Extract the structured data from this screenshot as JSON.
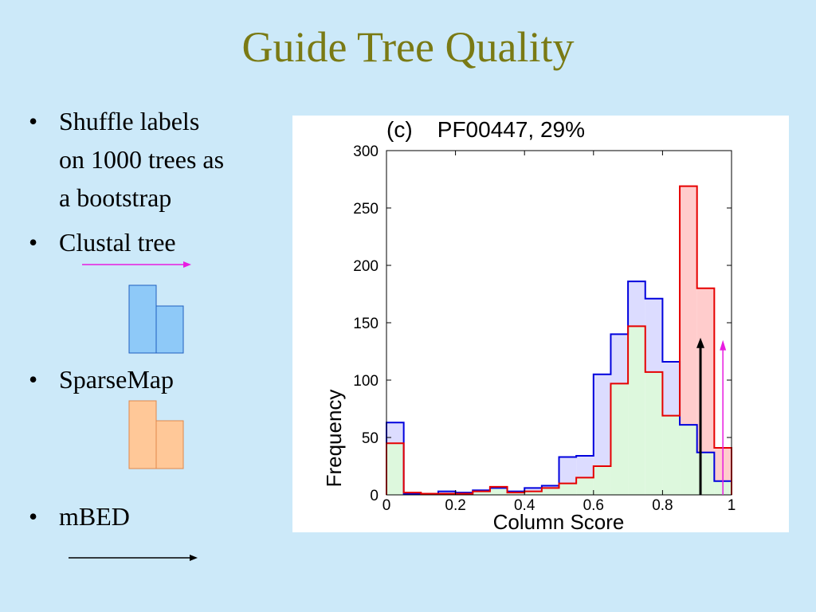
{
  "slide": {
    "title": "Guide Tree Quality",
    "bullets": [
      {
        "lines": [
          "Shuffle labels",
          "on 1000 trees as",
          "a bootstrap"
        ]
      },
      {
        "lines": [
          "Clustal tree"
        ]
      },
      {
        "lines": [
          "SparseMap"
        ]
      },
      {
        "lines": [
          "mBED"
        ]
      }
    ],
    "bullet_symbol": "•",
    "legend_markers": {
      "clustal": {
        "type": "arrow",
        "color": "#e81ce0"
      },
      "sparsemap": {
        "type": "blue-bars",
        "color": "#8ec9f8"
      },
      "mbed_shuffle": {
        "type": "orange-bars",
        "color": "#ffc898"
      },
      "mbed": {
        "type": "arrow",
        "color": "#000000"
      }
    }
  },
  "chart_data": {
    "type": "bar",
    "title": "(c)    PF00447, 29%",
    "xlabel": "Column Score",
    "ylabel": "Frequency",
    "xlim": [
      0,
      1
    ],
    "ylim": [
      0,
      300
    ],
    "xticks": [
      0,
      0.2,
      0.4,
      0.6,
      0.8,
      1
    ],
    "xtick_labels": [
      "0",
      "0.2",
      "0.4",
      "0.6",
      "0.8",
      "1"
    ],
    "yticks": [
      0,
      50,
      100,
      150,
      200,
      250,
      300
    ],
    "ytick_labels": [
      "0",
      "50",
      "100",
      "150",
      "200",
      "250",
      "300"
    ],
    "bin_edges": [
      0,
      0.05,
      0.1,
      0.15,
      0.2,
      0.25,
      0.3,
      0.35,
      0.4,
      0.45,
      0.5,
      0.55,
      0.6,
      0.65,
      0.7,
      0.75,
      0.8,
      0.85,
      0.9,
      0.95,
      1.0
    ],
    "series": [
      {
        "color": "#0000dd",
        "fill": "#dcdcff",
        "values": [
          63,
          1,
          1,
          3,
          2,
          4,
          6,
          3,
          6,
          8,
          33,
          34,
          105,
          140,
          186,
          171,
          116,
          61,
          37,
          12
        ]
      },
      {
        "color": "#e60000",
        "fill": "#ffcccc",
        "values": [
          45,
          2,
          1,
          1,
          1,
          3,
          7,
          2,
          3,
          6,
          10,
          15,
          25,
          97,
          147,
          107,
          69,
          269,
          180,
          41
        ]
      }
    ],
    "overlap_fill": "#ddf8dd",
    "arrows": [
      {
        "x": 0.91,
        "value": 137,
        "color": "#000000"
      },
      {
        "x": 0.975,
        "value": 135,
        "color": "#e81ce0"
      }
    ]
  }
}
